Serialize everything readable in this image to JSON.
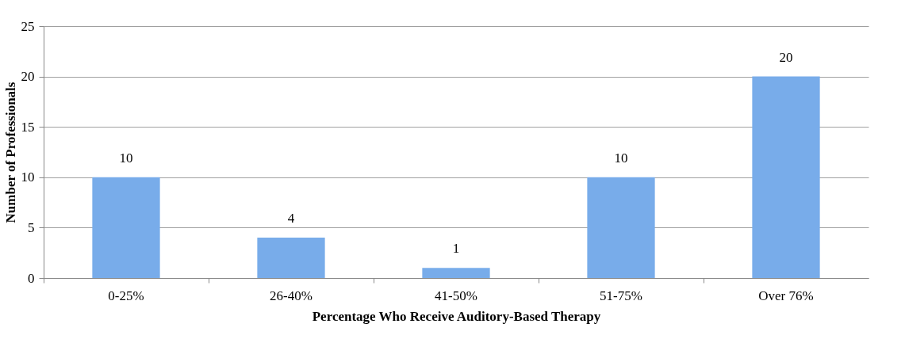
{
  "chart_data": {
    "type": "bar",
    "xlabel": "Percentage Who Receive Auditory-Based Therapy",
    "ylabel": "Number of Professionals",
    "categories": [
      "0-25%",
      "26-40%",
      "41-50%",
      "51-75%",
      "Over 76%"
    ],
    "values": [
      10,
      4,
      1,
      10,
      20
    ],
    "color": "#78acea",
    "ylim": [
      0,
      25
    ],
    "yticks": [
      0,
      5,
      10,
      15,
      20,
      25
    ],
    "grid": true,
    "data_labels": true
  }
}
